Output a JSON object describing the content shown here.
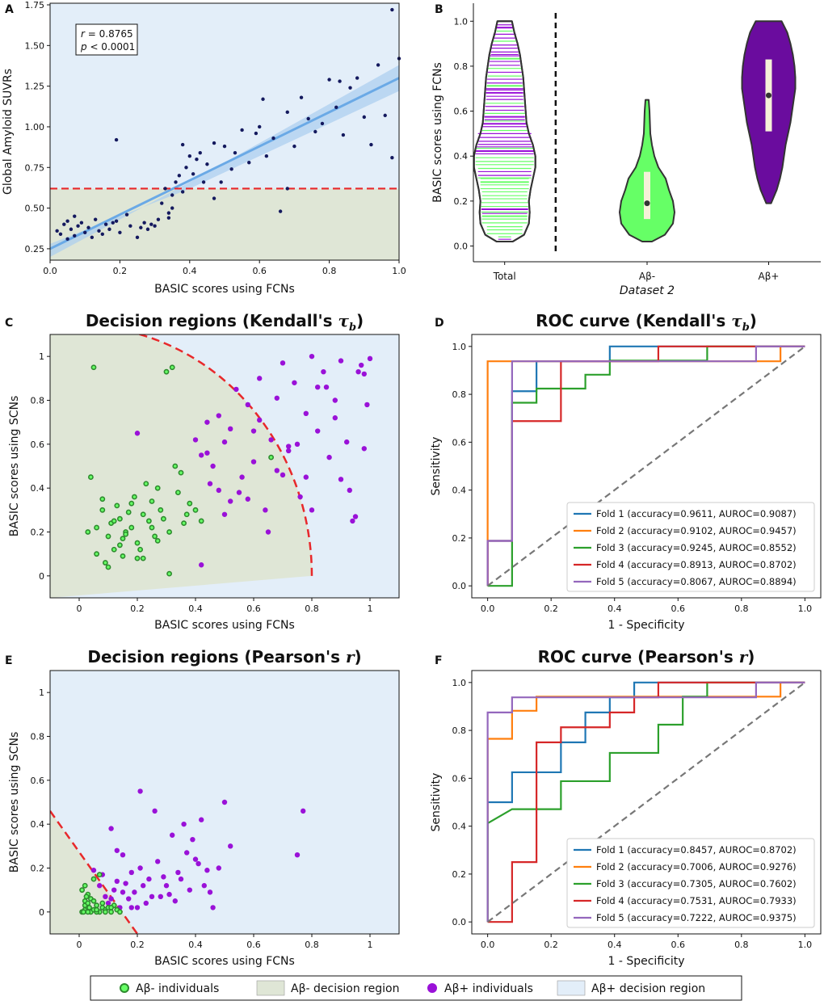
{
  "panel_letters": {
    "A": "A",
    "B": "B",
    "C": "C",
    "D": "D",
    "E": "E",
    "F": "F"
  },
  "legend": {
    "neg_individuals": "Aβ- individuals",
    "neg_region": "Aβ- decision region",
    "pos_individuals": "Aβ+ individuals",
    "pos_region": "Aβ+ decision region"
  },
  "colors": {
    "neg_region": "#dfe6d6",
    "pos_region": "#e3eef9",
    "neg_point": "#66ff66",
    "neg_edge": "#2e8b2e",
    "pos_point": "#9a11d8",
    "threshold": "#e8282b",
    "diagonal": "#777777",
    "navy": "#14195e",
    "fit": "#6aa9e6"
  },
  "chart_data": [
    {
      "panel": "A",
      "type": "scatter",
      "title": "",
      "xlabel": "BASIC scores using FCNs",
      "ylabel": "Global Amyloid SUVRs",
      "xlim": [
        0,
        1.0
      ],
      "ylim": [
        0.18,
        1.76
      ],
      "xticks": [
        0,
        0.2,
        0.4,
        0.6,
        0.8,
        1.0
      ],
      "xtick_labels": [
        "0.0",
        "0.2",
        "0.4",
        "0.6",
        "0.8",
        "1.0"
      ],
      "yticks": [
        0.25,
        0.5,
        0.75,
        1.0,
        1.25,
        1.5,
        1.75
      ],
      "ytick_labels": [
        "0.25",
        "0.50",
        "0.75",
        "1.00",
        "1.25",
        "1.50",
        "1.75"
      ],
      "threshold_y": 0.62,
      "fit": {
        "x0": 0.0,
        "y0": 0.25,
        "x1": 1.0,
        "y1": 1.3
      },
      "annotation": {
        "r_label": "r",
        "r_value": " = 0.8765",
        "p_label": "p",
        "p_value": " < 0.0001"
      },
      "x": [
        0.02,
        0.03,
        0.04,
        0.05,
        0.05,
        0.06,
        0.07,
        0.07,
        0.08,
        0.09,
        0.1,
        0.11,
        0.12,
        0.13,
        0.14,
        0.15,
        0.16,
        0.17,
        0.18,
        0.19,
        0.2,
        0.22,
        0.23,
        0.25,
        0.26,
        0.27,
        0.28,
        0.29,
        0.3,
        0.31,
        0.32,
        0.33,
        0.34,
        0.35,
        0.36,
        0.37,
        0.38,
        0.39,
        0.4,
        0.41,
        0.42,
        0.43,
        0.44,
        0.45,
        0.47,
        0.49,
        0.5,
        0.52,
        0.53,
        0.55,
        0.57,
        0.59,
        0.6,
        0.62,
        0.64,
        0.66,
        0.68,
        0.7,
        0.72,
        0.74,
        0.76,
        0.78,
        0.8,
        0.82,
        0.84,
        0.86,
        0.88,
        0.9,
        0.92,
        0.94,
        0.96,
        0.98,
        1.0,
        0.19,
        0.34,
        0.47,
        0.68,
        0.83,
        0.98,
        0.61,
        0.38,
        0.35
      ],
      "y": [
        0.36,
        0.34,
        0.4,
        0.31,
        0.42,
        0.37,
        0.33,
        0.45,
        0.39,
        0.41,
        0.35,
        0.38,
        0.32,
        0.43,
        0.36,
        0.34,
        0.4,
        0.37,
        0.41,
        0.42,
        0.35,
        0.46,
        0.39,
        0.32,
        0.38,
        0.41,
        0.37,
        0.4,
        0.39,
        0.43,
        0.53,
        0.62,
        0.44,
        0.58,
        0.66,
        0.7,
        0.89,
        0.75,
        0.82,
        0.71,
        0.8,
        0.84,
        0.66,
        0.77,
        0.9,
        0.66,
        0.88,
        0.74,
        0.84,
        0.98,
        0.78,
        0.96,
        1.0,
        0.82,
        0.93,
        0.48,
        1.09,
        0.88,
        1.18,
        1.05,
        0.97,
        1.02,
        1.29,
        1.12,
        0.95,
        1.24,
        1.3,
        1.06,
        0.89,
        1.38,
        1.07,
        0.81,
        1.42,
        0.92,
        0.47,
        0.56,
        0.62,
        1.28,
        1.72,
        1.17,
        0.6,
        0.5
      ]
    },
    {
      "panel": "B",
      "type": "violin",
      "ylabel": "BASIC scores using FCNs",
      "xlabel": "Dataset 2",
      "ylim": [
        -0.07,
        1.08
      ],
      "yticks": [
        0,
        0.2,
        0.4,
        0.6,
        0.8,
        1.0
      ],
      "ytick_labels": [
        "0.0",
        "0.2",
        "0.4",
        "0.6",
        "0.8",
        "1.0"
      ],
      "categories": [
        "Total",
        "Aβ-",
        "Aβ+"
      ],
      "neg_box": {
        "q1": 0.12,
        "median": 0.19,
        "q3": 0.33
      },
      "pos_box": {
        "q1": 0.51,
        "median": 0.67,
        "q3": 0.83
      },
      "total_range": [
        0.02,
        1.0
      ],
      "neg_range": [
        0.02,
        0.65
      ],
      "pos_range": [
        0.19,
        1.0
      ]
    },
    {
      "panel": "C",
      "type": "scatter",
      "title": "Decision regions (Kendall's τb)",
      "title_main": "Decision regions (Kendall's ",
      "title_sym": "τ",
      "title_sub": "b",
      "title_end": ")",
      "xlabel": "BASIC scores using FCNs",
      "ylabel": "BASIC scores using SCNs",
      "xlim": [
        -0.1,
        1.1
      ],
      "ylim": [
        -0.1,
        1.1
      ],
      "xticks": [
        0,
        0.2,
        0.4,
        0.6,
        0.8,
        1.0
      ],
      "xtick_labels": [
        "0",
        "0.2",
        "0.4",
        "0.6",
        "0.8",
        "1"
      ],
      "yticks": [
        0,
        0.2,
        0.4,
        0.6,
        0.8,
        1.0
      ],
      "ytick_labels": [
        "0",
        "0.2",
        "0.4",
        "0.6",
        "0.8",
        "1"
      ],
      "boundary": {
        "type": "ellipse",
        "a": 0.8,
        "b": 1.14
      },
      "neg_x": [
        0.05,
        0.06,
        0.08,
        0.1,
        0.12,
        0.14,
        0.16,
        0.18,
        0.2,
        0.22,
        0.03,
        0.04,
        0.06,
        0.09,
        0.11,
        0.13,
        0.15,
        0.17,
        0.19,
        0.21,
        0.23,
        0.25,
        0.27,
        0.29,
        0.31,
        0.33,
        0.35,
        0.37,
        0.3,
        0.32,
        0.08,
        0.12,
        0.15,
        0.18,
        0.22,
        0.26,
        0.28,
        0.34,
        0.36,
        0.38,
        0.4,
        0.42,
        0.25,
        0.27,
        0.31,
        0.1,
        0.14,
        0.16,
        0.2,
        0.24,
        0.66
      ],
      "neg_y": [
        0.95,
        0.22,
        0.3,
        0.18,
        0.12,
        0.26,
        0.2,
        0.33,
        0.15,
        0.28,
        0.2,
        0.45,
        0.1,
        0.06,
        0.24,
        0.32,
        0.09,
        0.29,
        0.36,
        0.12,
        0.42,
        0.34,
        0.4,
        0.26,
        0.2,
        0.5,
        0.47,
        0.28,
        0.93,
        0.95,
        0.35,
        0.25,
        0.17,
        0.22,
        0.08,
        0.18,
        0.3,
        0.38,
        0.24,
        0.33,
        0.3,
        0.25,
        0.22,
        0.16,
        0.01,
        0.04,
        0.14,
        0.19,
        0.08,
        0.25,
        0.54
      ],
      "pos_x": [
        0.2,
        0.4,
        0.42,
        0.44,
        0.46,
        0.48,
        0.5,
        0.52,
        0.54,
        0.56,
        0.58,
        0.6,
        0.62,
        0.64,
        0.66,
        0.68,
        0.7,
        0.72,
        0.74,
        0.76,
        0.78,
        0.8,
        0.82,
        0.84,
        0.86,
        0.88,
        0.9,
        0.92,
        0.94,
        0.96,
        0.98,
        1.0,
        0.42,
        0.45,
        0.5,
        0.55,
        0.6,
        0.65,
        0.7,
        0.75,
        0.8,
        0.85,
        0.9,
        0.95,
        0.97,
        0.99,
        0.44,
        0.48,
        0.52,
        0.58,
        0.62,
        0.68,
        0.72,
        0.78,
        0.82,
        0.88,
        0.93,
        0.98
      ],
      "pos_y": [
        0.65,
        0.62,
        0.55,
        0.7,
        0.5,
        0.73,
        0.61,
        0.34,
        0.85,
        0.45,
        0.78,
        0.52,
        0.9,
        0.3,
        0.62,
        0.81,
        0.46,
        0.57,
        0.88,
        0.36,
        0.74,
        1.0,
        0.66,
        0.93,
        0.54,
        0.8,
        0.98,
        0.61,
        0.25,
        0.93,
        0.58,
        0.99,
        0.05,
        0.42,
        0.28,
        0.38,
        0.66,
        0.2,
        0.97,
        0.6,
        0.3,
        0.86,
        0.44,
        0.27,
        0.96,
        0.78,
        0.56,
        0.39,
        0.67,
        0.35,
        0.71,
        0.48,
        0.59,
        0.45,
        0.86,
        0.72,
        0.39,
        0.92
      ]
    },
    {
      "panel": "D",
      "type": "line",
      "title": "ROC curve (Kendall's τb)",
      "title_main": "ROC curve (Kendall's ",
      "title_sym": "τ",
      "title_sub": "b",
      "title_end": ")",
      "xlabel": "1 - Specificity",
      "ylabel": "Sensitivity",
      "xlim": [
        -0.05,
        1.05
      ],
      "ylim": [
        -0.05,
        1.05
      ],
      "xticks": [
        0,
        0.2,
        0.4,
        0.6,
        0.8,
        1.0
      ],
      "xtick_labels": [
        "0.0",
        "0.2",
        "0.4",
        "0.6",
        "0.8",
        "1.0"
      ],
      "yticks": [
        0,
        0.2,
        0.4,
        0.6,
        0.8,
        1.0
      ],
      "ytick_labels": [
        "0.0",
        "0.2",
        "0.4",
        "0.6",
        "0.8",
        "1.0"
      ],
      "series": [
        {
          "name": "Fold 1 (accuracy=0.9611, AUROC=0.9087)",
          "color": "#1f77b4",
          "x": [
            0,
            0,
            0.077,
            0.077,
            0.154,
            0.154,
            0.385,
            0.385,
            1.0
          ],
          "y": [
            0,
            0.188,
            0.188,
            0.813,
            0.813,
            0.938,
            0.938,
            1.0,
            1.0
          ]
        },
        {
          "name": "Fold 2 (accuracy=0.9102, AUROC=0.9457)",
          "color": "#ff7f0e",
          "x": [
            0,
            0,
            0.923,
            0.923,
            1.0
          ],
          "y": [
            0,
            0.938,
            0.938,
            1.0,
            1.0
          ]
        },
        {
          "name": "Fold 3 (accuracy=0.9245, AUROC=0.8552)",
          "color": "#2ca02c",
          "x": [
            0,
            0,
            0.077,
            0.077,
            0.154,
            0.154,
            0.308,
            0.308,
            0.385,
            0.385,
            0.692,
            0.692,
            1.0
          ],
          "y": [
            0,
            0.0,
            0.0,
            0.765,
            0.765,
            0.824,
            0.824,
            0.882,
            0.882,
            0.941,
            0.941,
            1.0,
            1.0
          ]
        },
        {
          "name": "Fold 4 (accuracy=0.8913, AUROC=0.8702)",
          "color": "#d62728",
          "x": [
            0,
            0,
            0.077,
            0.077,
            0.231,
            0.231,
            0.538,
            0.538,
            1.0
          ],
          "y": [
            0,
            0.188,
            0.188,
            0.688,
            0.688,
            0.938,
            0.938,
            1.0,
            1.0
          ]
        },
        {
          "name": "Fold 5 (accuracy=0.8067, AUROC=0.8894)",
          "color": "#9467bd",
          "x": [
            0,
            0,
            0.077,
            0.077,
            0.846,
            0.846,
            1.0
          ],
          "y": [
            0,
            0.188,
            0.188,
            0.938,
            0.938,
            1.0,
            1.0
          ]
        }
      ]
    },
    {
      "panel": "E",
      "type": "scatter",
      "title": "Decision regions (Pearson's r)",
      "title_main": "Decision regions (Pearson's ",
      "title_sym": "r",
      "title_sub": "",
      "title_end": ")",
      "xlabel": "BASIC scores using FCNs",
      "ylabel": "BASIC scores using SCNs",
      "xlim": [
        -0.1,
        1.1
      ],
      "ylim": [
        -0.1,
        1.1
      ],
      "xticks": [
        0,
        0.2,
        0.4,
        0.6,
        0.8,
        1.0
      ],
      "xtick_labels": [
        "0",
        "0.2",
        "0.4",
        "0.6",
        "0.8",
        "1"
      ],
      "yticks": [
        0,
        0.2,
        0.4,
        0.6,
        0.8,
        1.0
      ],
      "ytick_labels": [
        "0",
        "0.2",
        "0.4",
        "0.6",
        "0.8",
        "1"
      ],
      "boundary": {
        "type": "line",
        "x0": -0.1,
        "y0": 0.46,
        "x1": 0.2,
        "y1": -0.1
      },
      "neg_x": [
        0.01,
        0.02,
        0.03,
        0.02,
        0.04,
        0.05,
        0.06,
        0.03,
        0.07,
        0.08,
        0.01,
        0.02,
        0.04,
        0.05,
        0.06,
        0.08,
        0.09,
        0.1,
        0.11,
        0.12,
        0.13,
        0.14,
        0.02,
        0.03,
        0.05,
        0.07,
        0.09,
        0.11,
        0.03,
        0.06,
        0.015,
        0.025,
        0.035
      ],
      "neg_y": [
        0.0,
        0.01,
        0.02,
        0.05,
        0.0,
        0.01,
        0.03,
        0.08,
        0.0,
        0.02,
        0.1,
        0.12,
        0.06,
        0.15,
        0.0,
        0.04,
        0.01,
        0.02,
        0.0,
        0.03,
        0.01,
        0.0,
        0.03,
        0.0,
        0.05,
        0.17,
        0.0,
        0.02,
        0.04,
        0.01,
        0.0,
        0.07,
        0.02
      ],
      "pos_x": [
        0.05,
        0.07,
        0.08,
        0.09,
        0.1,
        0.11,
        0.12,
        0.13,
        0.14,
        0.15,
        0.16,
        0.17,
        0.18,
        0.19,
        0.2,
        0.21,
        0.22,
        0.24,
        0.26,
        0.28,
        0.3,
        0.32,
        0.34,
        0.36,
        0.38,
        0.4,
        0.42,
        0.44,
        0.46,
        0.5,
        0.52,
        0.75,
        0.77,
        0.11,
        0.13,
        0.15,
        0.18,
        0.21,
        0.23,
        0.25,
        0.27,
        0.29,
        0.31,
        0.33,
        0.35,
        0.37,
        0.39,
        0.41,
        0.43,
        0.45,
        0.48
      ],
      "pos_y": [
        0.19,
        0.12,
        0.17,
        0.07,
        0.04,
        0.38,
        0.1,
        0.28,
        0.02,
        0.26,
        0.13,
        0.06,
        0.02,
        0.09,
        0.02,
        0.55,
        0.12,
        0.15,
        0.46,
        0.07,
        0.12,
        0.35,
        0.18,
        0.4,
        0.1,
        0.24,
        0.42,
        0.19,
        0.02,
        0.5,
        0.3,
        0.26,
        0.46,
        0.06,
        0.14,
        0.09,
        0.18,
        0.2,
        0.04,
        0.07,
        0.23,
        0.16,
        0.08,
        0.05,
        0.15,
        0.27,
        0.33,
        0.22,
        0.12,
        0.09,
        0.2
      ]
    },
    {
      "panel": "F",
      "type": "line",
      "title": "ROC curve (Pearson's r)",
      "title_main": "ROC curve (Pearson's ",
      "title_sym": "r",
      "title_sub": "",
      "title_end": ")",
      "xlabel": "1 - Specificity",
      "ylabel": "Sensitivity",
      "xlim": [
        -0.05,
        1.05
      ],
      "ylim": [
        -0.05,
        1.05
      ],
      "xticks": [
        0,
        0.2,
        0.4,
        0.6,
        0.8,
        1.0
      ],
      "xtick_labels": [
        "0.0",
        "0.2",
        "0.4",
        "0.6",
        "0.8",
        "1.0"
      ],
      "yticks": [
        0,
        0.2,
        0.4,
        0.6,
        0.8,
        1.0
      ],
      "ytick_labels": [
        "0.0",
        "0.2",
        "0.4",
        "0.6",
        "0.8",
        "1.0"
      ],
      "series": [
        {
          "name": "Fold 1 (accuracy=0.8457, AUROC=0.8702)",
          "color": "#1f77b4",
          "x": [
            0,
            0,
            0.077,
            0.077,
            0.231,
            0.231,
            0.308,
            0.308,
            0.385,
            0.385,
            0.462,
            0.462,
            1.0
          ],
          "y": [
            0,
            0.5,
            0.5,
            0.625,
            0.625,
            0.75,
            0.75,
            0.875,
            0.875,
            0.938,
            0.938,
            1.0,
            1.0
          ]
        },
        {
          "name": "Fold 2 (accuracy=0.7006, AUROC=0.9276)",
          "color": "#ff7f0e",
          "x": [
            0,
            0,
            0.077,
            0.077,
            0.154,
            0.154,
            0.923,
            0.923,
            1.0
          ],
          "y": [
            0,
            0.765,
            0.765,
            0.882,
            0.882,
            0.941,
            0.941,
            1.0,
            1.0
          ]
        },
        {
          "name": "Fold 3 (accuracy=0.7305, AUROC=0.7602)",
          "color": "#2ca02c",
          "x": [
            0,
            0,
            0.077,
            0.077,
            0.231,
            0.231,
            0.385,
            0.385,
            0.538,
            0.538,
            0.615,
            0.615,
            0.692,
            0.692,
            1.0
          ],
          "y": [
            0,
            0.412,
            0.471,
            0.471,
            0.471,
            0.588,
            0.588,
            0.706,
            0.706,
            0.824,
            0.824,
            0.941,
            0.941,
            1.0,
            1.0
          ]
        },
        {
          "name": "Fold 4 (accuracy=0.7531, AUROC=0.7933)",
          "color": "#d62728",
          "x": [
            0,
            0,
            0.077,
            0.077,
            0.154,
            0.154,
            0.231,
            0.231,
            0.385,
            0.385,
            0.462,
            0.462,
            0.538,
            0.538,
            1.0
          ],
          "y": [
            0,
            0,
            0,
            0.25,
            0.25,
            0.75,
            0.75,
            0.813,
            0.813,
            0.875,
            0.875,
            0.938,
            0.938,
            1.0,
            1.0
          ]
        },
        {
          "name": "Fold 5 (accuracy=0.7222, AUROC=0.9375)",
          "color": "#9467bd",
          "x": [
            0,
            0,
            0.077,
            0.077,
            0.154,
            0.154,
            0.846,
            0.846,
            1.0
          ],
          "y": [
            0,
            0.875,
            0.875,
            0.938,
            0.938,
            0.938,
            0.938,
            1.0,
            1.0
          ]
        }
      ]
    }
  ]
}
